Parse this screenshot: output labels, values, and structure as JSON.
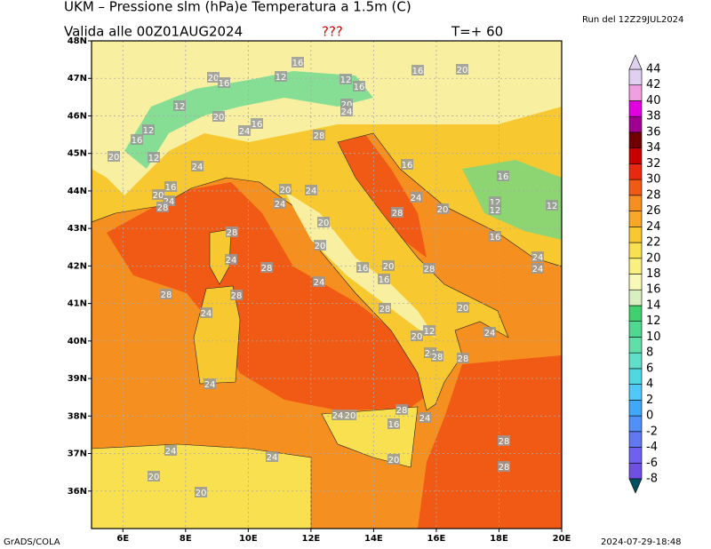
{
  "header": {
    "title": "UKM – Pressione slm (hPa)e Temperatura a 1.5m (C)",
    "valid": "Valida alle 00Z01AUG2024",
    "flag": "???",
    "step": "T=+ 60",
    "run": "Run del 12Z29JUL2024"
  },
  "map": {
    "lonlim": [
      5,
      20
    ],
    "latlim": [
      35,
      48
    ],
    "lonticks": [
      {
        "value": 6,
        "label": "6E"
      },
      {
        "value": 8,
        "label": "8E"
      },
      {
        "value": 10,
        "label": "10E"
      },
      {
        "value": 12,
        "label": "12E"
      },
      {
        "value": 14,
        "label": "14E"
      },
      {
        "value": 16,
        "label": "16E"
      },
      {
        "value": 18,
        "label": "18E"
      },
      {
        "value": 20,
        "label": "20E"
      }
    ],
    "latticks": [
      {
        "value": 36,
        "label": "36N"
      },
      {
        "value": 37,
        "label": "37N"
      },
      {
        "value": 38,
        "label": "38N"
      },
      {
        "value": 39,
        "label": "39N"
      },
      {
        "value": 40,
        "label": "40N"
      },
      {
        "value": 41,
        "label": "41N"
      },
      {
        "value": 42,
        "label": "42N"
      },
      {
        "value": 43,
        "label": "43N"
      },
      {
        "value": 44,
        "label": "44N"
      },
      {
        "value": 45,
        "label": "45N"
      },
      {
        "value": 46,
        "label": "46N"
      },
      {
        "value": 47,
        "label": "47N"
      },
      {
        "value": 48,
        "label": "48N"
      }
    ],
    "grid": true,
    "contour_labels": [
      16,
      16,
      20,
      20,
      16,
      12,
      12,
      16,
      12,
      20,
      24,
      20,
      16,
      12,
      16,
      24,
      28,
      20,
      12,
      24,
      16,
      16,
      16,
      20,
      24,
      28,
      20,
      24,
      24,
      24,
      20,
      28,
      12,
      12,
      12,
      20,
      16,
      28,
      24,
      28,
      20,
      16,
      20,
      16,
      28,
      24,
      24,
      28,
      28,
      24,
      24,
      28,
      20,
      12,
      20,
      24,
      24,
      28,
      28,
      24,
      28,
      24,
      20,
      16,
      24,
      28,
      24,
      24,
      20,
      20,
      20,
      28
    ]
  },
  "colorbar": {
    "levels": [
      -8,
      -6,
      -4,
      -2,
      0,
      2,
      4,
      6,
      8,
      10,
      12,
      14,
      16,
      18,
      20,
      22,
      24,
      26,
      28,
      30,
      32,
      34,
      36,
      38,
      40,
      42,
      44
    ],
    "colors": [
      "#7050e0",
      "#7060f0",
      "#6078f0",
      "#5090f8",
      "#40a8f8",
      "#50c8f8",
      "#50d8e0",
      "#60e0c8",
      "#60e0a8",
      "#50d890",
      "#40d070",
      "#d8f0c0",
      "#f8f8b8",
      "#f8f080",
      "#f8e050",
      "#f8c830",
      "#f8a828",
      "#f59020",
      "#f05a14",
      "#e82810",
      "#c80000",
      "#700000",
      "#a00090",
      "#e000e0",
      "#f0a0e0",
      "#e0d0f0"
    ],
    "under": "#005060",
    "over": "#e0d0f0"
  },
  "footer": {
    "left": "GrADS/COLA",
    "right": "2024-07-29-18:48"
  }
}
